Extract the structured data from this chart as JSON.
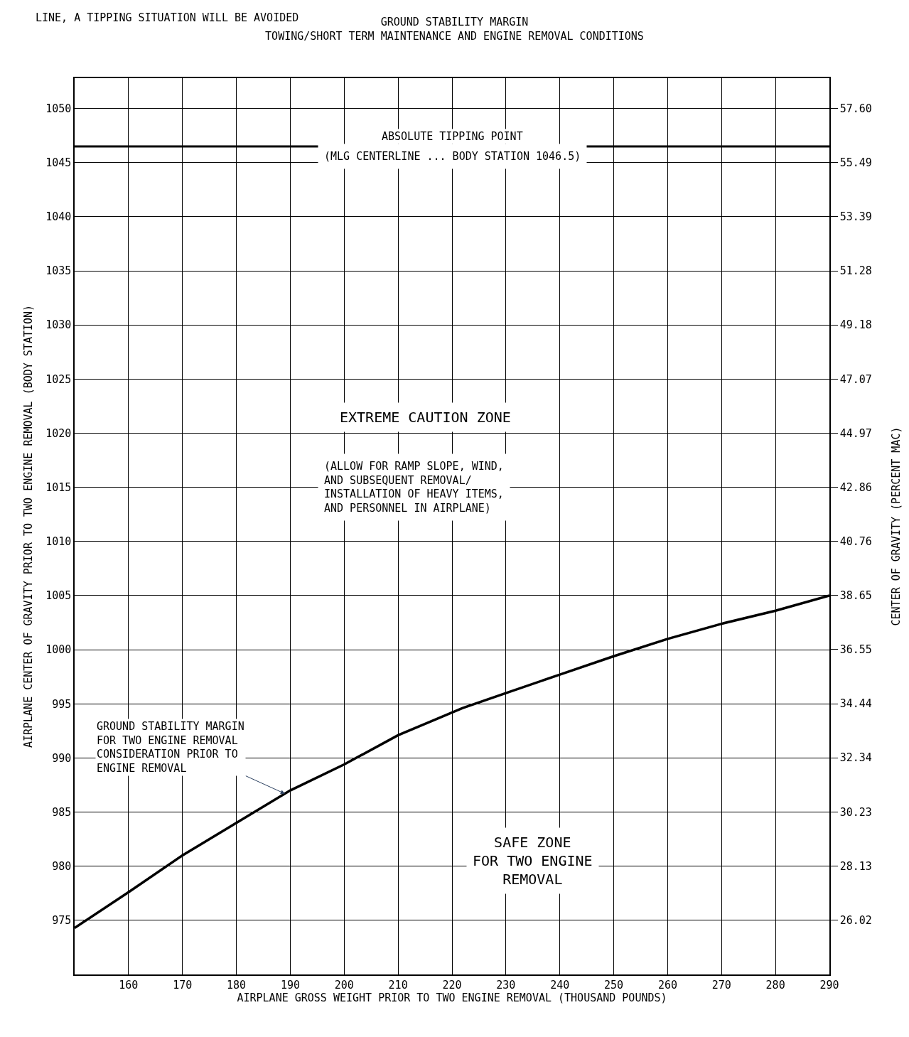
{
  "chart_data": {
    "type": "line",
    "title": "GROUND STABILITY MARGIN",
    "subtitle": "TOWING/SHORT TERM MAINTENANCE AND ENGINE REMOVAL CONDITIONS",
    "xlabel": "AIRPLANE GROSS WEIGHT PRIOR TO TWO ENGINE REMOVAL (THOUSAND POUNDS)",
    "ylabel": "AIRPLANE CENTER OF GRAVITY PRIOR TO TWO ENGINE REMOVAL (BODY STATION)",
    "y2label": "CENTER OF GRAVITY (PERCENT MAC)",
    "x": [
      150,
      160,
      170,
      180,
      190,
      200,
      210,
      221.9,
      230,
      240,
      250,
      260,
      270,
      280,
      290
    ],
    "series": [
      {
        "color": "#000000",
        "values": [
          974.3,
          977.6,
          981.0,
          984.0,
          987.0,
          989.4,
          992.1,
          994.6,
          996.0,
          997.7,
          999.4,
          1001.0,
          1002.4,
          1003.6,
          1005.0
        ]
      }
    ],
    "xlim": [
      150,
      290
    ],
    "xticks": [
      160,
      170,
      180,
      190,
      200,
      210,
      220,
      230,
      240,
      250,
      260,
      270,
      280,
      290
    ],
    "ylim": [
      970,
      1052.8
    ],
    "yticks": [
      975,
      980,
      985,
      990,
      995,
      1000,
      1005,
      1010,
      1015,
      1020,
      1025,
      1030,
      1035,
      1040,
      1045,
      1050
    ],
    "y2lim": [
      23.91,
      58.78
    ],
    "y2ticks": [
      {
        "value": 26.02,
        "label": "26.02"
      },
      {
        "value": 28.13,
        "label": "28.13"
      },
      {
        "value": 30.23,
        "label": "30.23"
      },
      {
        "value": 32.34,
        "label": "32.34"
      },
      {
        "value": 34.44,
        "label": "34.44"
      },
      {
        "value": 36.55,
        "label": "36.55"
      },
      {
        "value": 38.65,
        "label": "38.65"
      },
      {
        "value": 40.76,
        "label": "40.76"
      },
      {
        "value": 42.86,
        "label": "42.86"
      },
      {
        "value": 44.97,
        "label": "44.97"
      },
      {
        "value": 47.07,
        "label": "47.07"
      },
      {
        "value": 49.18,
        "label": "49.18"
      },
      {
        "value": 51.28,
        "label": "51.28"
      },
      {
        "value": 53.39,
        "label": "53.39"
      },
      {
        "value": 55.49,
        "label": "55.49"
      },
      {
        "value": 57.6,
        "label": "57.60"
      }
    ],
    "ref_lines": [
      {
        "axis": "y",
        "value": 1046.5,
        "label": "ABSOLUTE TIPPING POINT",
        "color": "#000000"
      }
    ],
    "annotations": [
      "LINE, A TIPPING SITUATION WILL BE AVOIDED",
      "(MLG CENTERLINE ... BODY STATION 1046.5)",
      "EXTREME CAUTION ZONE",
      "(ALLOW FOR RAMP SLOPE, WIND,\nAND SUBSEQUENT REMOVAL/\nINSTALLATION OF HEAVY ITEMS,\nAND PERSONNEL IN AIRPLANE)",
      "SAFE ZONE\nFOR TWO ENGINE\nREMOVAL",
      {
        "text": "GROUND STABILITY MARGIN\nFOR TWO ENGINE REMOVAL\nCONSIDERATION PRIOR TO\nENGINE REMOVAL",
        "x": 189,
        "y": 986.7
      }
    ],
    "grid": true,
    "marker": "none",
    "line_style": "solid"
  }
}
